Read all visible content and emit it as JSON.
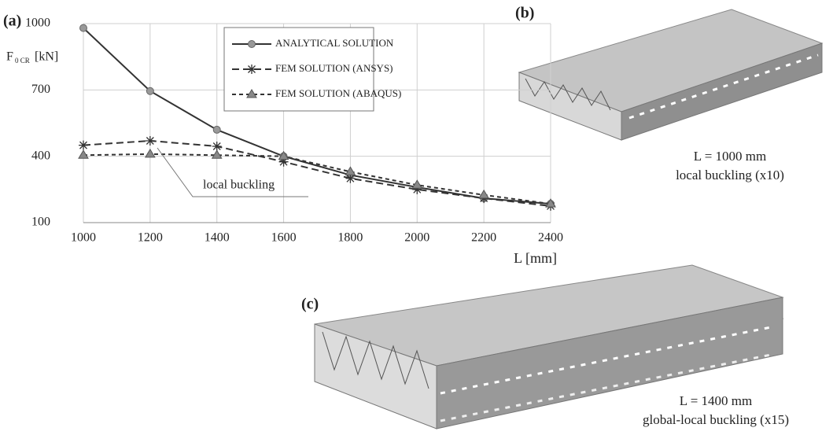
{
  "chart_data": {
    "type": "line",
    "panel_label": "(a)",
    "ylabel_symbol": "F",
    "ylabel_subscript": "0 CR",
    "ylabel_unit": "[kN]",
    "xlabel": "L [mm]",
    "x": [
      1000,
      1200,
      1400,
      1600,
      1800,
      2000,
      2200,
      2400
    ],
    "xlim": [
      1000,
      2400
    ],
    "xticks": [
      1000,
      1200,
      1400,
      1600,
      1800,
      2000,
      2200,
      2400
    ],
    "ylim": [
      100,
      1000
    ],
    "yticks": [
      100,
      400,
      700,
      1000
    ],
    "grid": true,
    "series": [
      {
        "name": "ANALYTICAL SOLUTION",
        "color": "#333333",
        "marker": "circle",
        "dash": "solid",
        "values": [
          980,
          695,
          520,
          400,
          315,
          260,
          210,
          185
        ]
      },
      {
        "name": "FEM SOLUTION (ANSYS)",
        "color": "#333333",
        "marker": "asterisk",
        "dash": "long",
        "values": [
          450,
          470,
          445,
          375,
          300,
          250,
          210,
          175
        ]
      },
      {
        "name": "FEM SOLUTION (ABAQUS)",
        "color": "#333333",
        "marker": "triangle",
        "dash": "short",
        "values": [
          405,
          410,
          405,
          400,
          330,
          270,
          225,
          185
        ]
      }
    ],
    "annotation": "local buckling"
  },
  "panels": [
    {
      "label": "(b)",
      "length": "L = 1000 mm",
      "caption": "local buckling (x10)"
    },
    {
      "label": "(c)",
      "length": "L = 1400 mm",
      "caption": "global-local buckling (x15)"
    }
  ]
}
